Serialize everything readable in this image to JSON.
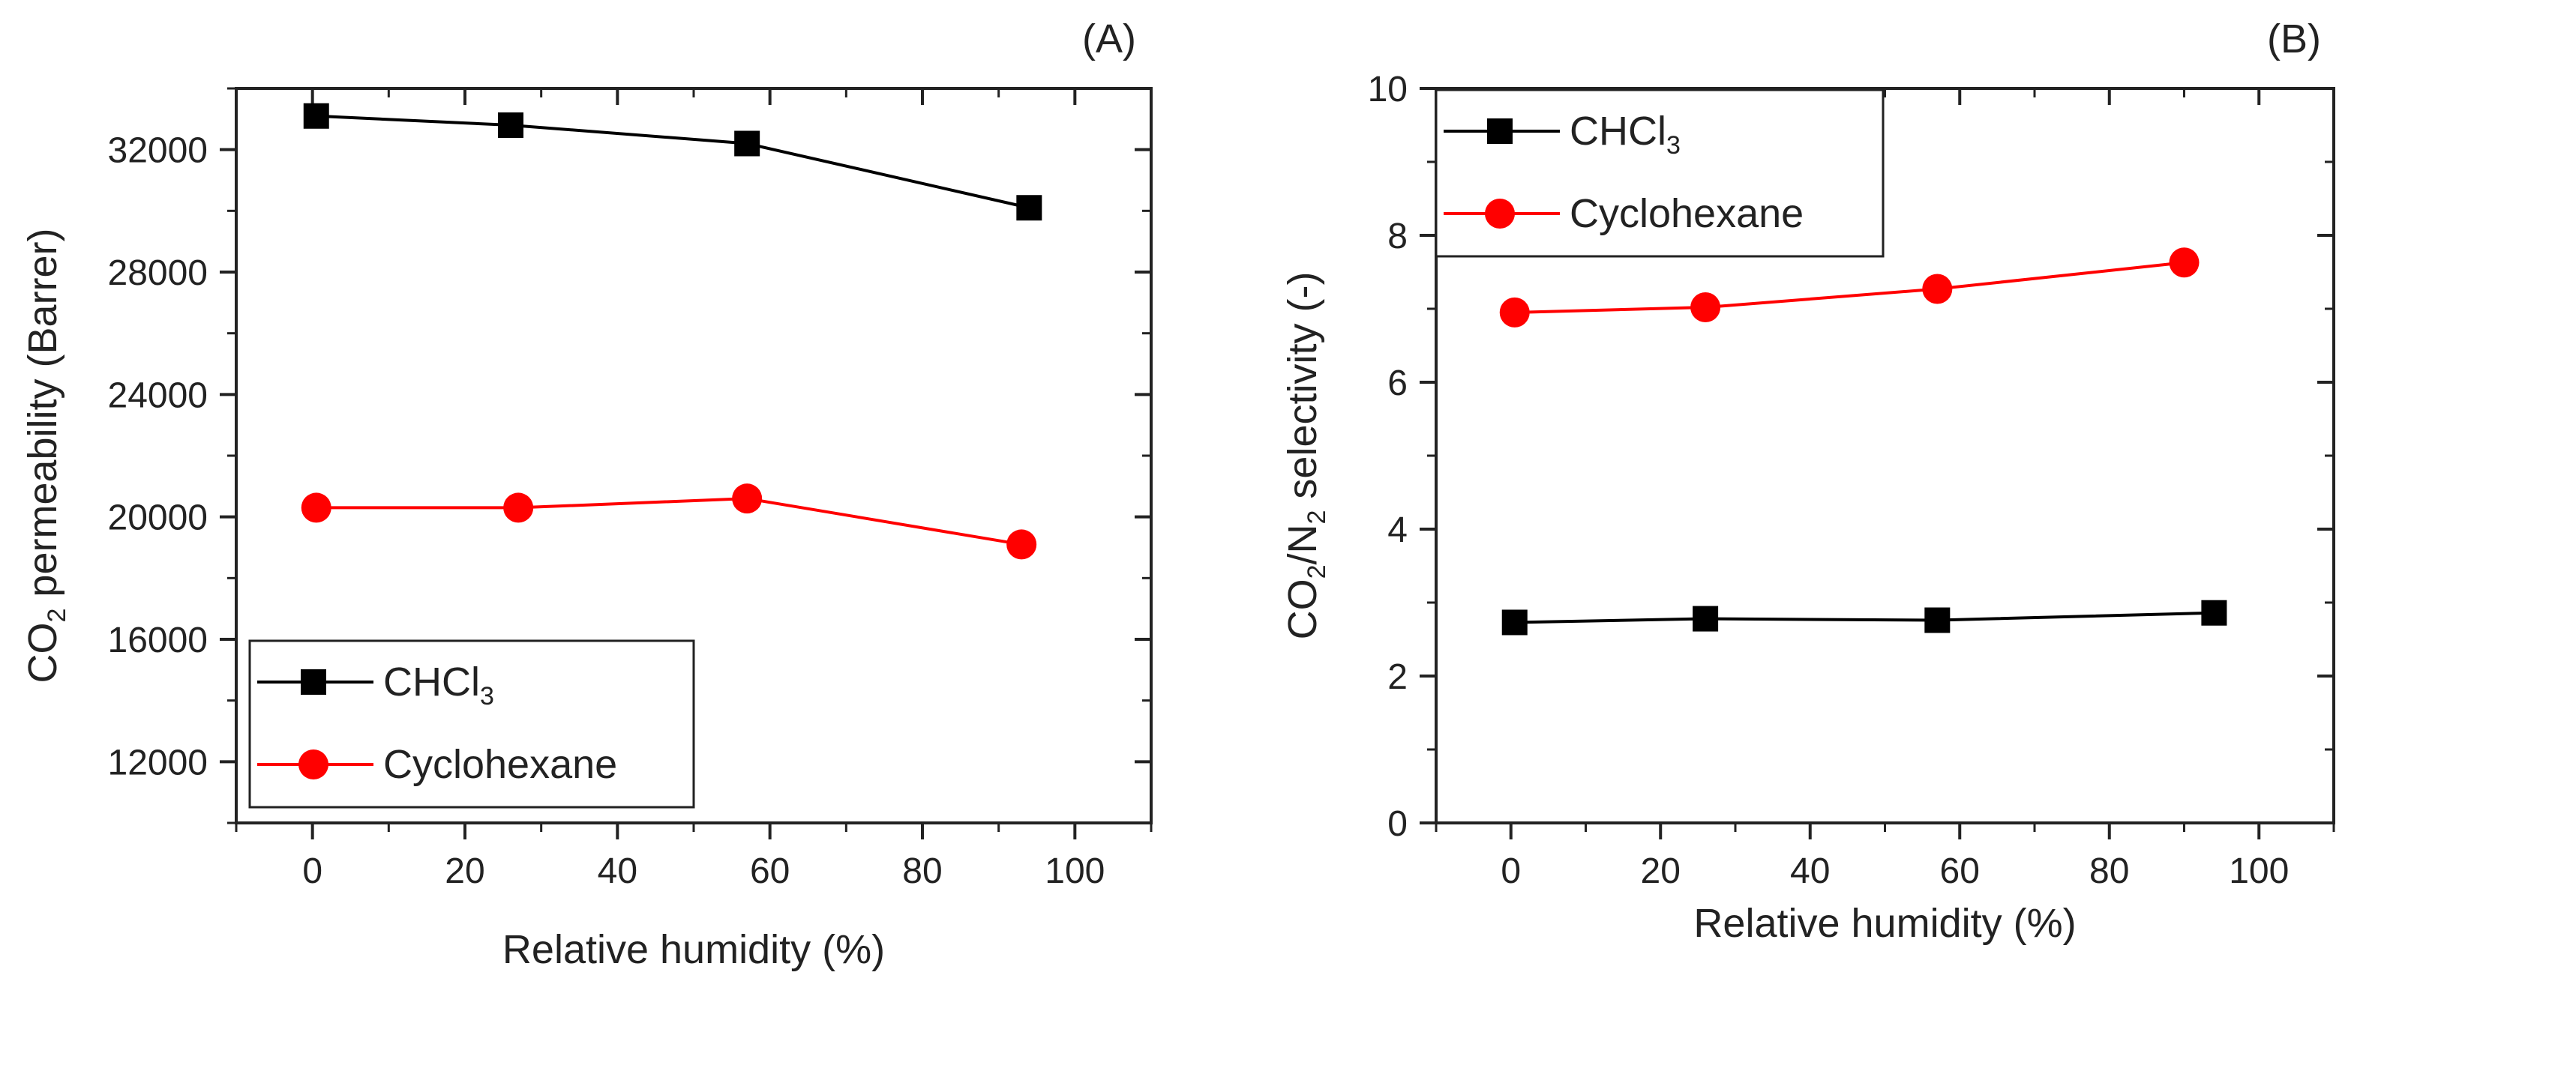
{
  "chart_data": [
    {
      "panel_label": "(A)",
      "type": "line",
      "x_label": "Relative humidity (%)",
      "y_label": {
        "parts": [
          "CO",
          "2",
          " permeability (Barrer)"
        ]
      },
      "xlim": [
        -10,
        110
      ],
      "ylim": [
        10000,
        34000
      ],
      "x_ticks": [
        0,
        20,
        40,
        60,
        80,
        100
      ],
      "y_ticks": [
        12000,
        16000,
        20000,
        24000,
        28000,
        32000
      ],
      "legend_position": "bottom-left",
      "series": [
        {
          "name": "CHCl3",
          "legend_parts": [
            "CHCl",
            "3"
          ],
          "color": "#000000",
          "marker": "square",
          "x": [
            0.5,
            26,
            57,
            94
          ],
          "y": [
            33100,
            32800,
            32200,
            30100
          ]
        },
        {
          "name": "Cyclohexane",
          "legend_parts": [
            "Cyclohexane"
          ],
          "color": "#ff0000",
          "marker": "circle",
          "x": [
            0.5,
            27,
            57,
            93
          ],
          "y": [
            20300,
            20300,
            20600,
            19100
          ]
        }
      ]
    },
    {
      "panel_label": "(B)",
      "type": "line",
      "x_label": "Relative humidity (%)",
      "y_label": {
        "parts": [
          "CO",
          "2",
          "/N",
          "2",
          " selectivity (-)"
        ]
      },
      "xlim": [
        -10,
        110
      ],
      "ylim": [
        0,
        10
      ],
      "x_ticks": [
        0,
        20,
        40,
        60,
        80,
        100
      ],
      "y_ticks": [
        0,
        2,
        4,
        6,
        8,
        10
      ],
      "legend_position": "top-left",
      "series": [
        {
          "name": "CHCl3",
          "legend_parts": [
            "CHCl",
            "3"
          ],
          "color": "#000000",
          "marker": "square",
          "x": [
            0.5,
            26,
            57,
            94
          ],
          "y": [
            2.73,
            2.78,
            2.76,
            2.86
          ]
        },
        {
          "name": "Cyclohexane",
          "legend_parts": [
            "Cyclohexane"
          ],
          "color": "#ff0000",
          "marker": "circle",
          "x": [
            0.5,
            26,
            57,
            90
          ],
          "y": [
            6.95,
            7.02,
            7.27,
            7.63
          ]
        }
      ]
    }
  ]
}
